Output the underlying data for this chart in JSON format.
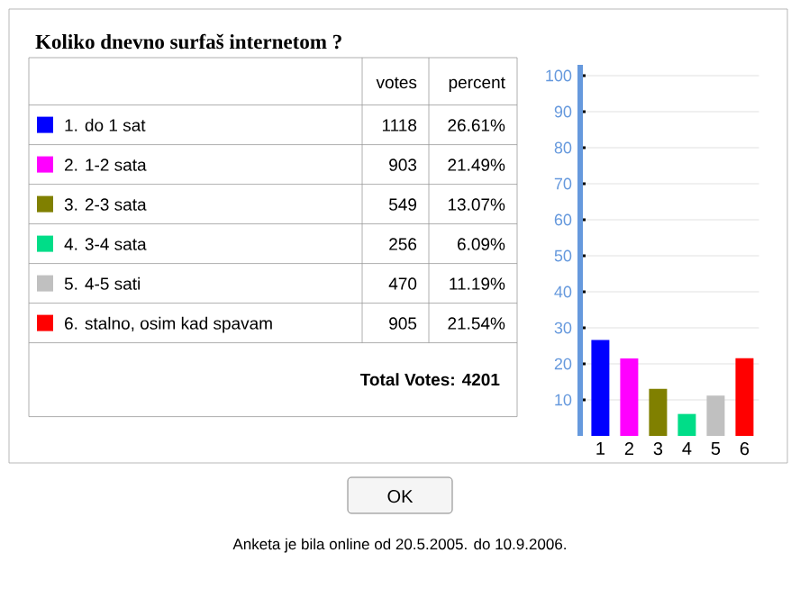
{
  "chart_data": [
    {
      "type": "other",
      "title": "Koliko dnevno surfaš internetom ?",
      "categories": [
        "1. do 1 sat",
        "2. 1-2 sata",
        "3. 2-3 sata",
        "4. 3-4 sata",
        "5. 4-5 sati",
        "6. stalno, osim kad spavam"
      ],
      "colors": [
        "#0000ff",
        "#ff00ff",
        "#808000",
        "#00dd88",
        "#c0c0c0",
        "#ff0000"
      ],
      "series": [
        {
          "name": "votes",
          "values": [
            1118,
            903,
            549,
            256,
            470,
            905
          ]
        }
      ],
      "data_labels": true,
      "annotations": [
        "Total Votes: 4201",
        "Anketa je bila online od 20.5.2005. do 10.9.2006.",
        "OK"
      ]
    },
    {
      "type": "bar",
      "categories": [
        "1",
        "2",
        "3",
        "4",
        "5",
        "6"
      ],
      "series": [
        {
          "name": "percent",
          "values": [
            26.61,
            21.49,
            13.07,
            6.09,
            11.19,
            21.54
          ],
          "value_labels": [
            "26.61%",
            "21.49%",
            "13.07%",
            "6.09%",
            "11.19%",
            "21.54%"
          ]
        }
      ],
      "colors": [
        "#0000ff",
        "#ff00ff",
        "#808000",
        "#00dd88",
        "#c0c0c0",
        "#ff0000"
      ],
      "ylim": [
        0,
        103
      ],
      "yticks": [
        10,
        20,
        30,
        40,
        50,
        60,
        70,
        80,
        90,
        100
      ],
      "grid": "y"
    }
  ]
}
